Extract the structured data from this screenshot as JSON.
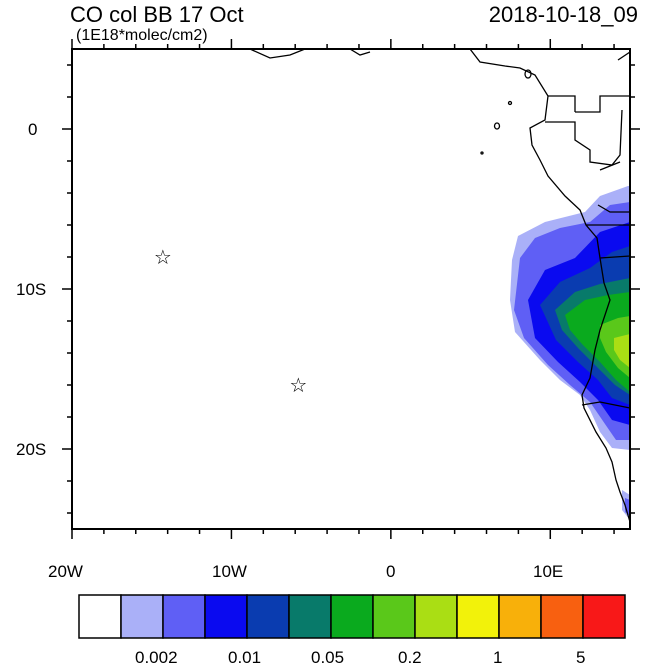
{
  "title": {
    "main": "CO col BB 17 Oct",
    "units": "(1E18*molec/cm2)",
    "datetime": "2018-10-18_09"
  },
  "axes": {
    "x_ticks": [
      "20W",
      "10W",
      "0",
      "10E"
    ],
    "y_ticks": [
      "0",
      "10S",
      "20S"
    ],
    "x_range_deg_east": [
      -20,
      15
    ],
    "y_range_deg_north": [
      -25,
      5
    ]
  },
  "markers": [
    {
      "name": "star-marker-1",
      "symbol": "☆",
      "lon": -14.3,
      "lat": -8.0
    },
    {
      "name": "star-marker-2",
      "symbol": "☆",
      "lon": -5.8,
      "lat": -16.0
    }
  ],
  "colorbar": {
    "colors": [
      "#ffffff",
      "#aab0f8",
      "#5f5ff5",
      "#0a0af0",
      "#0a3cb0",
      "#087a6a",
      "#0aaa1e",
      "#5ac81a",
      "#aade14",
      "#f2f20a",
      "#f8b00a",
      "#f86010",
      "#f81818"
    ],
    "labels": [
      "0.002",
      "0.01",
      "0.05",
      "0.2",
      "1",
      "5"
    ],
    "label_boundaries": [
      2,
      4,
      6,
      8,
      10,
      12
    ]
  }
}
